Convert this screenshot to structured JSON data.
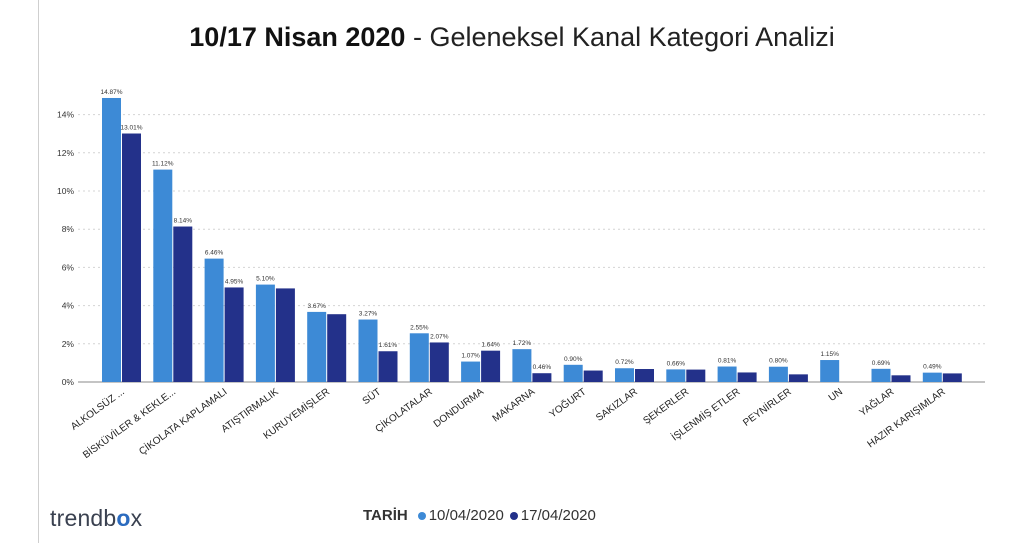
{
  "title": {
    "bold": "10/17 Nisan 2020",
    "rest": " - Geleneksel Kanal Kategori Analizi"
  },
  "logo": {
    "pre": "trendb",
    "o": "o",
    "post": "x"
  },
  "legend": {
    "title": "TARİH"
  },
  "colors": {
    "s1": "#3d8ad6",
    "s2": "#23318a",
    "grid": "#d4d4d4",
    "axis": "#8a8a8a"
  },
  "chart_data": {
    "type": "bar",
    "title": "10/17 Nisan 2020 - Geleneksel Kanal Kategori Analizi",
    "xlabel": "",
    "ylabel": "",
    "ylim": [
      0,
      15
    ],
    "yticks": [
      0,
      2,
      4,
      6,
      8,
      10,
      12,
      14
    ],
    "ytick_labels": [
      "0%",
      "2%",
      "4%",
      "6%",
      "8%",
      "10%",
      "12%",
      "14%"
    ],
    "grid": true,
    "legend_position": "bottom",
    "categories": [
      "ALKOLSÜZ ...",
      "BİSKÜVİLER & KEKLE...",
      "ÇİKOLATA KAPLAMALI",
      "ATIŞTIRMALIK",
      "KURUYEMİŞLER",
      "SÜT",
      "ÇİKOLATALAR",
      "DONDURMA",
      "MAKARNA",
      "YOĞURT",
      "SAKIZLAR",
      "ŞEKERLER",
      "İŞLENMİŞ ETLER",
      "PEYNİRLER",
      "UN",
      "YAĞLAR",
      "HAZIR KARIŞIMLAR"
    ],
    "series": [
      {
        "name": "10/04/2020",
        "values": [
          14.87,
          11.12,
          6.46,
          5.1,
          3.67,
          3.27,
          2.55,
          1.07,
          1.72,
          0.9,
          0.72,
          0.66,
          0.81,
          0.8,
          1.15,
          0.69,
          0.49
        ],
        "labels": [
          "14.87%",
          "11.12%",
          "6.46%",
          "5.10%",
          "3.67%",
          "3.27%",
          "2.55%",
          "1.07%",
          "1.72%",
          "0.90%",
          "0.72%",
          "0.66%",
          "0.81%",
          "0.80%",
          "1.15%",
          "0.69%",
          "0.49%"
        ]
      },
      {
        "name": "17/04/2020",
        "values": [
          13.01,
          8.14,
          4.95,
          4.9,
          3.55,
          1.61,
          2.07,
          1.64,
          0.46,
          0.6,
          0.68,
          0.65,
          0.5,
          0.4,
          0.0,
          0.35,
          0.45
        ],
        "labels": [
          "13.01%",
          "8.14%",
          "4.95%",
          "",
          "",
          "1.61%",
          "2.07%",
          "1.64%",
          "0.46%",
          "",
          "",
          "",
          "",
          "",
          "",
          "",
          ""
        ]
      }
    ]
  }
}
